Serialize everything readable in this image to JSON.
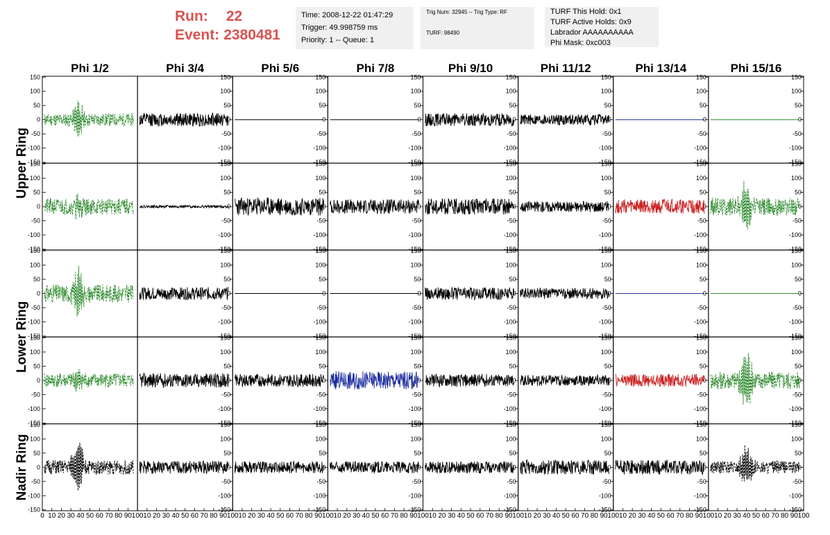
{
  "header": {
    "run_label": "Run:",
    "run_value": "22",
    "event_label": "Event:",
    "event_value": "2380481",
    "time": "Time: 2008-12-22 01:47:29",
    "trigger": "Trigger: 49.998759 ms",
    "priority": "Priority: 1 -- Queue: 1",
    "trig_num": "Trig Num: 32945 -- Trig Type: RF",
    "turf": "TURF: 98490",
    "turf_this_hold": "TURF This Hold: 0x1",
    "turf_active_holds": "TURF Active Holds: 0x9",
    "labrador": "Labrador AAAAAAAAAA",
    "phi_mask": "Phi Mask: 0xc003"
  },
  "colors": {
    "header_red": "#d9534f",
    "info_bg": "#f0f0f0",
    "green": "#2e8b2e",
    "black": "#000000",
    "blue": "#1f2fa0",
    "red": "#cc2222"
  },
  "chart_data": {
    "type": "line",
    "columns": [
      "Phi 1/2",
      "Phi 3/4",
      "Phi 5/6",
      "Phi 7/8",
      "Phi 9/10",
      "Phi 11/12",
      "Phi 13/14",
      "Phi 15/16"
    ],
    "ring_labels": [
      "Upper Ring",
      "Lower Ring",
      "Nadir Ring"
    ],
    "ylim": [
      -150,
      150
    ],
    "yticks": [
      -150,
      -100,
      -50,
      0,
      50,
      100,
      150
    ],
    "xlim": [
      0,
      100
    ],
    "xticks": [
      0,
      10,
      20,
      30,
      40,
      50,
      60,
      70,
      80,
      90,
      100
    ],
    "rows": [
      {
        "ring": "Upper Ring",
        "panels": [
          {
            "color": "#2e8b2e",
            "style": "dashed",
            "amp": 14,
            "pulse": 55,
            "pulse_at": 38,
            "seed": 11
          },
          {
            "color": "#000000",
            "style": "solid",
            "amp": 15,
            "pulse": 0,
            "pulse_at": 0,
            "seed": 12
          },
          {
            "color": "#000000",
            "style": "flat",
            "amp": 0,
            "pulse": 0,
            "pulse_at": 0,
            "seed": 13
          },
          {
            "color": "#000000",
            "style": "flat",
            "amp": 0,
            "pulse": 0,
            "pulse_at": 0,
            "seed": 14
          },
          {
            "color": "#000000",
            "style": "solid",
            "amp": 14,
            "pulse": 0,
            "pulse_at": 0,
            "seed": 15
          },
          {
            "color": "#000000",
            "style": "solid",
            "amp": 12,
            "pulse": 0,
            "pulse_at": 0,
            "seed": 16
          },
          {
            "color": "#1f2fa0",
            "style": "flat",
            "amp": 0,
            "pulse": 0,
            "pulse_at": 0,
            "seed": 17
          },
          {
            "color": "#2e8b2e",
            "style": "flat",
            "amp": 0,
            "pulse": 0,
            "pulse_at": 0,
            "seed": 18
          }
        ]
      },
      {
        "ring": "Upper Ring",
        "panels": [
          {
            "color": "#2e8b2e",
            "style": "dashed",
            "amp": 18,
            "pulse": 35,
            "pulse_at": 38,
            "seed": 21
          },
          {
            "color": "#000000",
            "style": "solid",
            "amp": 3,
            "pulse": 0,
            "pulse_at": 0,
            "seed": 22
          },
          {
            "color": "#000000",
            "style": "solid",
            "amp": 20,
            "pulse": 0,
            "pulse_at": 0,
            "seed": 23
          },
          {
            "color": "#000000",
            "style": "solid",
            "amp": 16,
            "pulse": 0,
            "pulse_at": 0,
            "seed": 24
          },
          {
            "color": "#000000",
            "style": "solid",
            "amp": 18,
            "pulse": 0,
            "pulse_at": 0,
            "seed": 25
          },
          {
            "color": "#000000",
            "style": "solid",
            "amp": 12,
            "pulse": 0,
            "pulse_at": 0,
            "seed": 26
          },
          {
            "color": "#cc2222",
            "style": "solid",
            "amp": 16,
            "pulse": 0,
            "pulse_at": 0,
            "seed": 27
          },
          {
            "color": "#2e8b2e",
            "style": "dashed",
            "amp": 20,
            "pulse": 90,
            "pulse_at": 40,
            "seed": 28
          }
        ]
      },
      {
        "ring": "Lower Ring",
        "panels": [
          {
            "color": "#2e8b2e",
            "style": "dashed",
            "amp": 20,
            "pulse": 70,
            "pulse_at": 38,
            "seed": 31
          },
          {
            "color": "#000000",
            "style": "solid",
            "amp": 14,
            "pulse": 0,
            "pulse_at": 0,
            "seed": 32
          },
          {
            "color": "#000000",
            "style": "flat",
            "amp": 0,
            "pulse": 0,
            "pulse_at": 0,
            "seed": 33
          },
          {
            "color": "#000000",
            "style": "flat",
            "amp": 0,
            "pulse": 0,
            "pulse_at": 0,
            "seed": 34
          },
          {
            "color": "#000000",
            "style": "solid",
            "amp": 14,
            "pulse": 0,
            "pulse_at": 0,
            "seed": 35
          },
          {
            "color": "#000000",
            "style": "solid",
            "amp": 12,
            "pulse": 0,
            "pulse_at": 0,
            "seed": 36
          },
          {
            "color": "#1f2fa0",
            "style": "flat",
            "amp": 0,
            "pulse": 0,
            "pulse_at": 0,
            "seed": 37
          },
          {
            "color": "#2e8b2e",
            "style": "flat",
            "amp": 0,
            "pulse": 0,
            "pulse_at": 0,
            "seed": 38
          }
        ]
      },
      {
        "ring": "Lower Ring",
        "panels": [
          {
            "color": "#2e8b2e",
            "style": "dashed",
            "amp": 16,
            "pulse": 35,
            "pulse_at": 38,
            "seed": 41
          },
          {
            "color": "#000000",
            "style": "solid",
            "amp": 16,
            "pulse": 0,
            "pulse_at": 0,
            "seed": 42
          },
          {
            "color": "#000000",
            "style": "solid",
            "amp": 14,
            "pulse": 0,
            "pulse_at": 0,
            "seed": 43
          },
          {
            "color": "#1f2fa0",
            "style": "solid",
            "amp": 20,
            "pulse": 0,
            "pulse_at": 0,
            "seed": 44
          },
          {
            "color": "#000000",
            "style": "solid",
            "amp": 14,
            "pulse": 0,
            "pulse_at": 0,
            "seed": 45
          },
          {
            "color": "#000000",
            "style": "solid",
            "amp": 12,
            "pulse": 0,
            "pulse_at": 0,
            "seed": 46
          },
          {
            "color": "#cc2222",
            "style": "solid",
            "amp": 14,
            "pulse": 0,
            "pulse_at": 0,
            "seed": 47
          },
          {
            "color": "#2e8b2e",
            "style": "dashed",
            "amp": 20,
            "pulse": 100,
            "pulse_at": 40,
            "seed": 48
          }
        ]
      },
      {
        "ring": "Nadir Ring",
        "panels": [
          {
            "color": "#000000",
            "style": "dashed",
            "amp": 16,
            "pulse": 90,
            "pulse_at": 38,
            "seed": 51
          },
          {
            "color": "#000000",
            "style": "solid",
            "amp": 14,
            "pulse": 0,
            "pulse_at": 0,
            "seed": 52
          },
          {
            "color": "#000000",
            "style": "solid",
            "amp": 13,
            "pulse": 0,
            "pulse_at": 0,
            "seed": 53
          },
          {
            "color": "#000000",
            "style": "solid",
            "amp": 13,
            "pulse": 0,
            "pulse_at": 0,
            "seed": 54
          },
          {
            "color": "#000000",
            "style": "solid",
            "amp": 13,
            "pulse": 0,
            "pulse_at": 0,
            "seed": 55
          },
          {
            "color": "#000000",
            "style": "solid",
            "amp": 16,
            "pulse": 0,
            "pulse_at": 0,
            "seed": 56
          },
          {
            "color": "#000000",
            "style": "solid",
            "amp": 16,
            "pulse": 0,
            "pulse_at": 0,
            "seed": 57
          },
          {
            "color": "#000000",
            "style": "dashed",
            "amp": 14,
            "pulse": 60,
            "pulse_at": 40,
            "seed": 58
          }
        ]
      }
    ]
  }
}
